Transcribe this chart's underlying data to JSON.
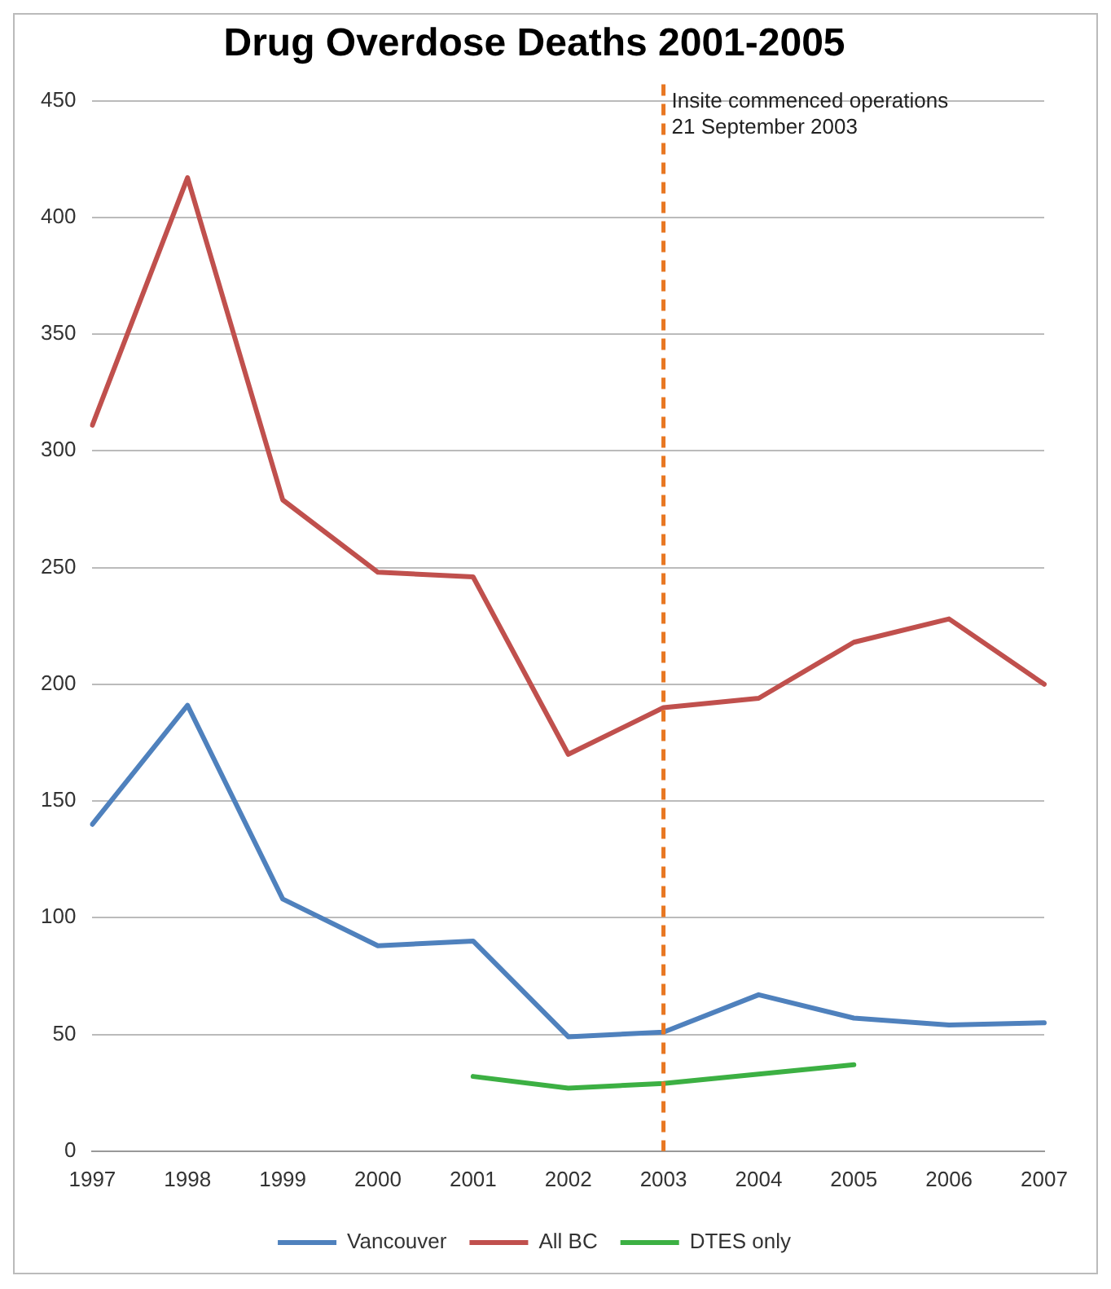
{
  "chart_data": {
    "type": "line",
    "title": "Drug Overdose Deaths 2001-2005",
    "categories": [
      "1997",
      "1998",
      "1999",
      "2000",
      "2001",
      "2002",
      "2003",
      "2004",
      "2005",
      "2006",
      "2007"
    ],
    "series": [
      {
        "name": "Vancouver",
        "color": "#4f81bd",
        "values": [
          140,
          191,
          108,
          88,
          90,
          49,
          51,
          67,
          57,
          54,
          55
        ]
      },
      {
        "name": "All BC",
        "color": "#c0504d",
        "values": [
          311,
          417,
          279,
          248,
          246,
          170,
          190,
          194,
          218,
          228,
          200
        ]
      },
      {
        "name": "DTES only",
        "color": "#3cb043",
        "values": [
          null,
          null,
          null,
          null,
          32,
          27,
          29,
          33,
          37,
          null,
          null
        ]
      }
    ],
    "ylim": [
      0,
      450
    ],
    "yticks": [
      0,
      50,
      100,
      150,
      200,
      250,
      300,
      350,
      400,
      450
    ],
    "grid": "y",
    "legend": "bottom",
    "marker": "none",
    "line_style": "solid",
    "ref_lines": [
      {
        "axis": "x",
        "value": "2003",
        "label": "Insite commenced operations\n21 September 2003",
        "color": "#e87722",
        "line_style": "dashed"
      }
    ]
  }
}
